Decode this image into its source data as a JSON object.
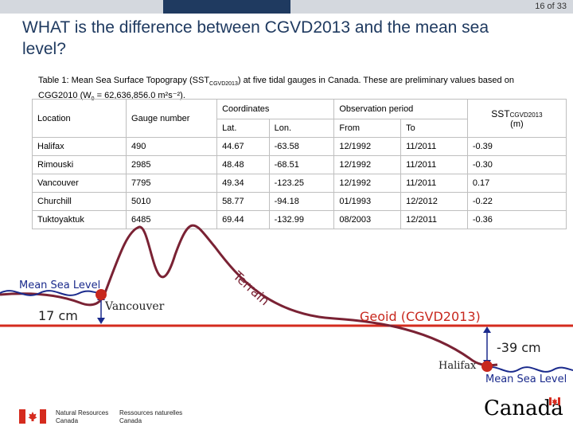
{
  "header": {
    "page_number": "16 of 33"
  },
  "title": "WHAT is the difference between CGVD2013 and the mean sea level?",
  "table": {
    "caption_before": "Table 1: Mean Sea Surface Topograpy (SST",
    "caption_sub": "CGVD2013",
    "caption_after": ") at five tidal gauges in Canada. These are preliminary values based on CGG2010 (W",
    "caption_w_sub": "0",
    "caption_end": " = 62,636,856.0 m²s⁻²).",
    "col_location": "Location",
    "col_gauge": "Gauge number",
    "col_coordinates": "Coordinates",
    "col_lat": "Lat.",
    "col_lon": "Lon.",
    "col_obs": "Observation period",
    "col_from": "From",
    "col_to": "To",
    "col_sst": "SST",
    "col_sst_sub": "CGVD2013",
    "col_sst_unit": "(m)",
    "rows": [
      [
        "Halifax",
        "490",
        "44.67",
        "-63.58",
        "12/1992",
        "11/2011",
        "-0.39"
      ],
      [
        "Rimouski",
        "2985",
        "48.48",
        "-68.51",
        "12/1992",
        "11/2011",
        "-0.30"
      ],
      [
        "Vancouver",
        "7795",
        "49.34",
        "-123.25",
        "12/1992",
        "11/2011",
        "0.17"
      ],
      [
        "Churchill",
        "5010",
        "58.77",
        "-94.18",
        "01/1993",
        "12/2012",
        "-0.22"
      ],
      [
        "Tuktoyaktuk",
        "6485",
        "69.44",
        "-132.99",
        "08/2003",
        "12/2011",
        "-0.36"
      ]
    ]
  },
  "diagram": {
    "terrain_label": "Terrain",
    "msl_left": "Mean Sea Level",
    "offset_left": "17 cm",
    "vancouver": "Vancouver",
    "geoid": "Geoid (CGVD2013)",
    "offset_right": "-39 cm",
    "halifax": "Halifax",
    "msl_right": "Mean Sea Level",
    "colors": {
      "geoid": "#d42b1e",
      "terrain": "#7a2234",
      "msl": "#1a2a8c",
      "point": "#c8281e"
    }
  },
  "footer": {
    "nrcan_en_1": "Natural Resources",
    "nrcan_en_2": "Canada",
    "nrcan_fr_1": "Ressources naturelles",
    "nrcan_fr_2": "Canada",
    "wordmark": "Canada"
  }
}
